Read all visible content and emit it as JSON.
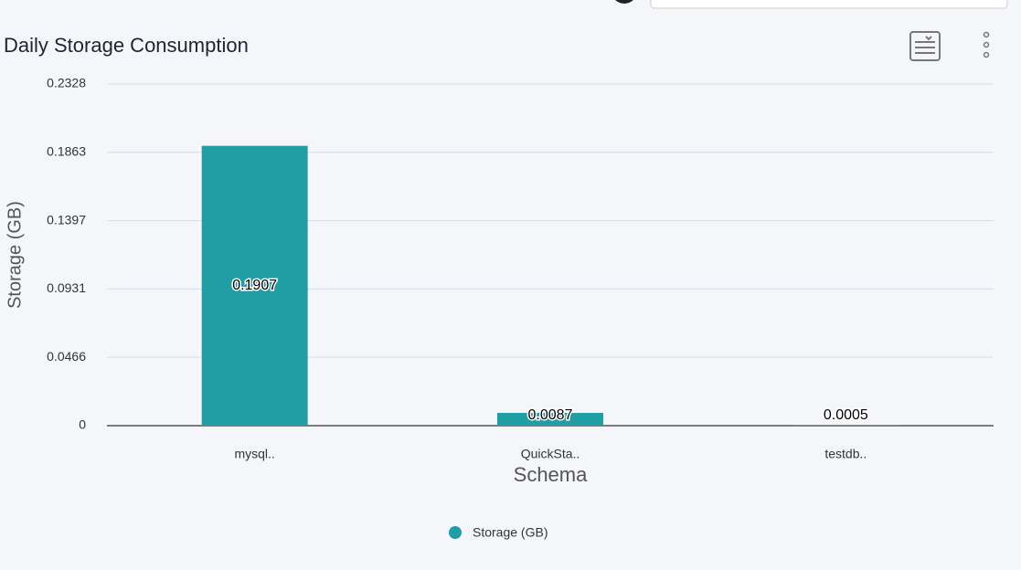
{
  "chart_data": {
    "type": "bar",
    "title": "Daily Storage Consumption",
    "y_label": "Storage (GB)",
    "x_label": "Schema",
    "categories": [
      "mysql..",
      "QuickSta..",
      "testdb.."
    ],
    "series": [
      {
        "name": "Storage (GB)",
        "color": "#1f9ea6",
        "values": [
          0.1907,
          0.0087,
          0.0005
        ]
      }
    ],
    "ylim": [
      0,
      0.2328
    ],
    "yticks": [
      0,
      0.0466,
      0.0931,
      0.1397,
      0.1863,
      0.2328
    ],
    "grid": true
  }
}
